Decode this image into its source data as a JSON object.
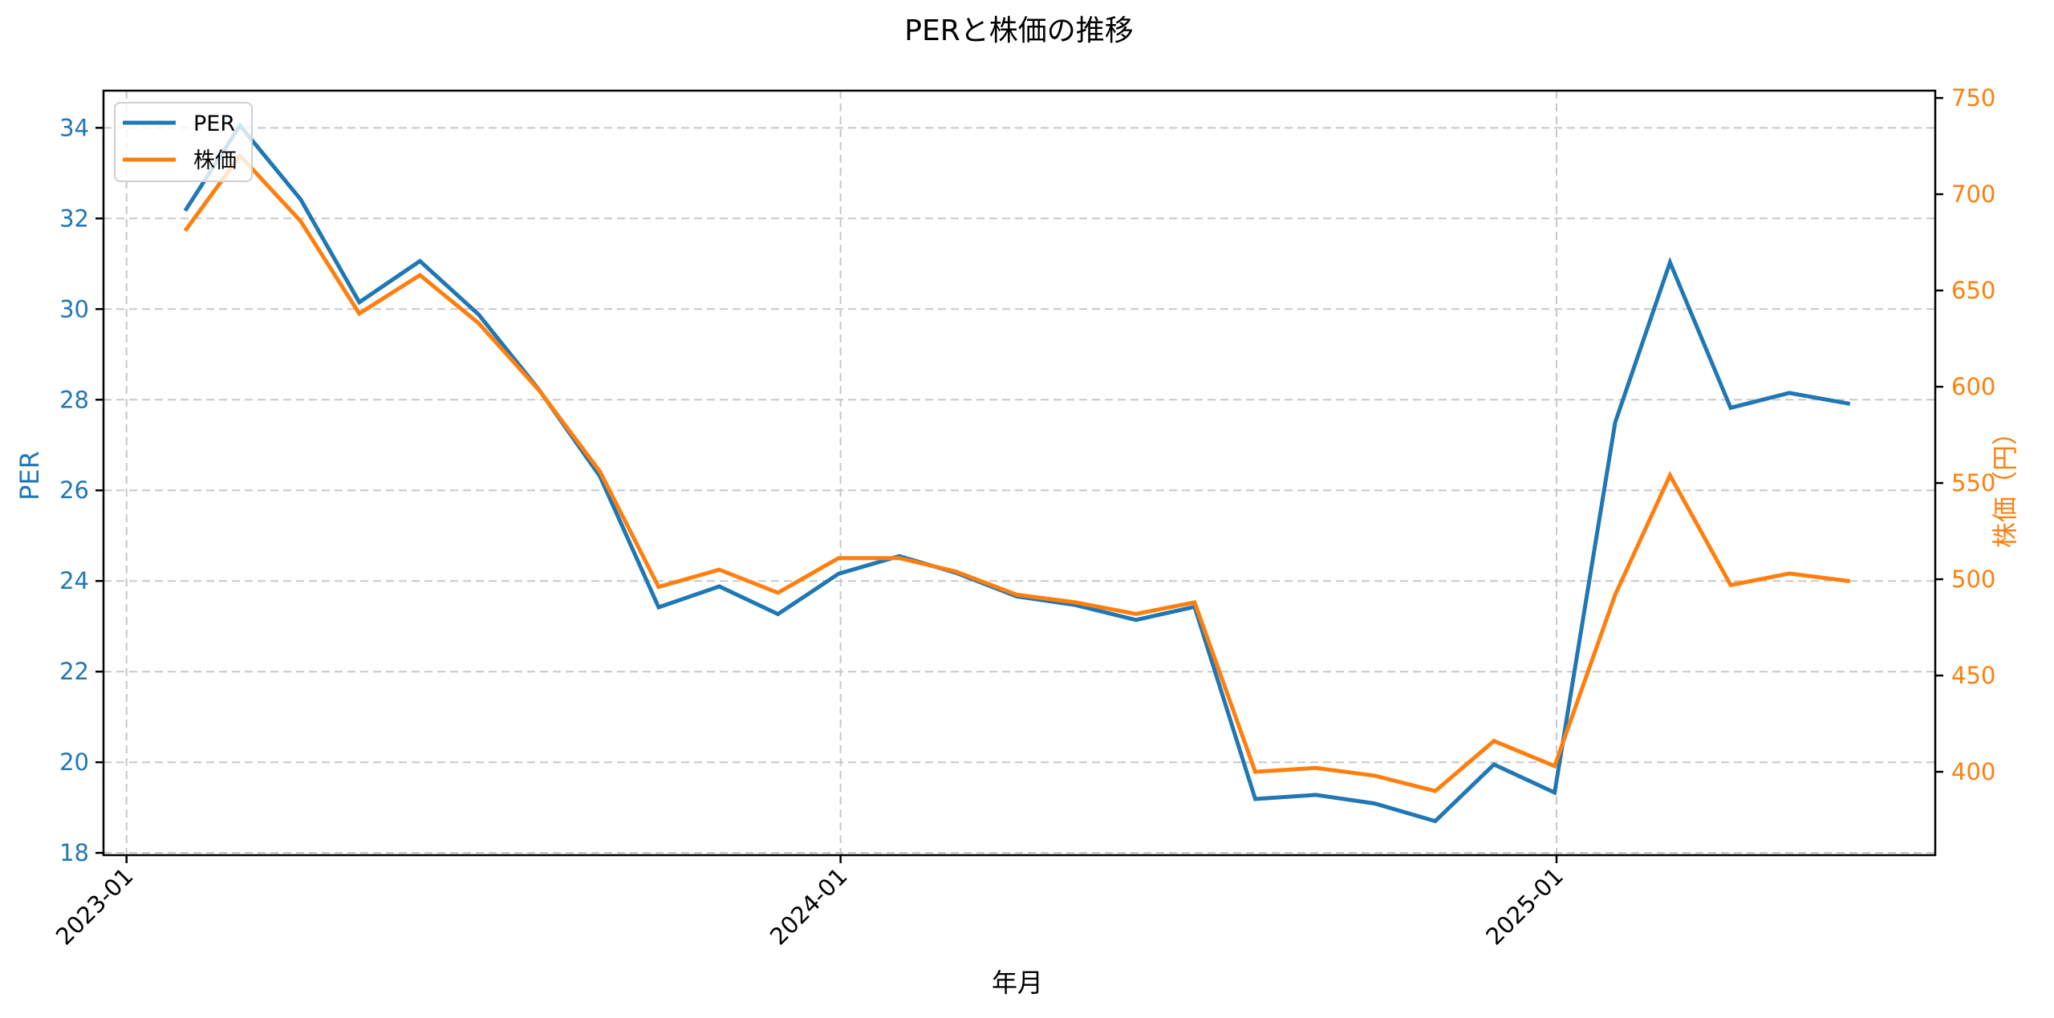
{
  "chart_data": {
    "type": "line",
    "title": "PERと株価の推移",
    "xlabel": "年月",
    "ylabel_left": "PER",
    "ylabel_right": "株価（円）",
    "colors": {
      "per": "#1f77b4",
      "price": "#ff7f0e"
    },
    "x": [
      "2023-01",
      "2023-02",
      "2023-03",
      "2023-04",
      "2023-05",
      "2023-06",
      "2023-07",
      "2023-08",
      "2023-09",
      "2023-10",
      "2023-11",
      "2023-12",
      "2024-01",
      "2024-02",
      "2024-03",
      "2024-04",
      "2024-05",
      "2024-06",
      "2024-07",
      "2024-08",
      "2024-09",
      "2024-10",
      "2024-11",
      "2024-12",
      "2025-01",
      "2025-02",
      "2025-03",
      "2025-04",
      "2025-05"
    ],
    "series": [
      {
        "name": "PER",
        "axis": "left",
        "values": [
          32.17,
          34.05,
          32.42,
          30.15,
          31.06,
          29.88,
          28.21,
          26.31,
          23.42,
          23.88,
          23.27,
          24.16,
          24.55,
          24.18,
          23.66,
          23.47,
          23.14,
          23.43,
          19.19,
          19.28,
          19.09,
          18.7,
          19.95,
          19.33,
          27.5,
          31.03,
          27.82,
          28.15,
          27.91
        ]
      },
      {
        "name": "株価",
        "axis": "right",
        "values": [
          681,
          720,
          686,
          638,
          658,
          633,
          598,
          556,
          496,
          505,
          493,
          511,
          511,
          504,
          492,
          488,
          482,
          488,
          400,
          402,
          398,
          390,
          416,
          403,
          492,
          554,
          497,
          503,
          499
        ]
      }
    ],
    "x_ticks": [
      "2023-01",
      "2024-01",
      "2025-01"
    ],
    "y_left_ticks": [
      18,
      20,
      22,
      24,
      26,
      28,
      30,
      32,
      34
    ],
    "y_right_ticks": [
      400,
      450,
      500,
      550,
      600,
      650,
      700,
      750
    ],
    "ylim_left": [
      17.95,
      34.82
    ],
    "ylim_right": [
      356.7,
      753.8
    ],
    "grid": true,
    "legend": {
      "position": "upper left",
      "entries": [
        "PER",
        "株価"
      ]
    }
  }
}
